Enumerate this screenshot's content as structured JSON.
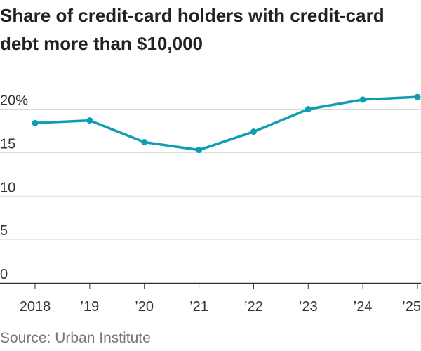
{
  "header": {
    "title": "Share of credit-card holders with credit-card debt more than $10,000"
  },
  "footer": {
    "source": "Source: Urban Institute"
  },
  "chart_data": {
    "type": "line",
    "title": "Share of credit-card holders with credit-card debt more than $10,000",
    "xlabel": "",
    "ylabel": "",
    "categories": [
      "2018",
      "’19",
      "’20",
      "’21",
      "’22",
      "’23",
      "’24",
      "’25"
    ],
    "series": [
      {
        "values": [
          18.4,
          18.7,
          16.2,
          15.3,
          17.4,
          20.0,
          21.1,
          21.4
        ]
      }
    ],
    "ylim": [
      0,
      20
    ],
    "yticks": [
      0,
      5,
      10,
      15,
      20
    ],
    "ytick_labels": [
      "0",
      "5",
      "10",
      "15",
      "20%"
    ],
    "grid": true,
    "legend": "none",
    "colors": {
      "line": "#0F9DB2",
      "grid": "#d9d9d9",
      "axis": "#333333"
    }
  }
}
